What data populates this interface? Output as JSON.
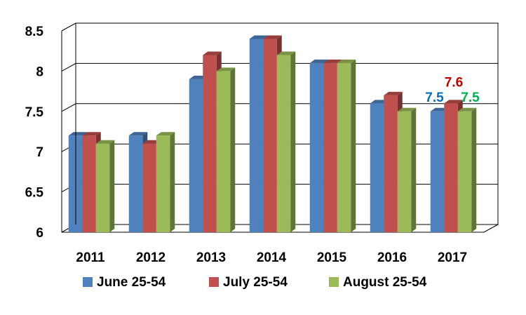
{
  "chart_data": {
    "type": "bar",
    "title": "",
    "xlabel": "",
    "ylabel": "",
    "categories": [
      "2011",
      "2012",
      "2013",
      "2014",
      "2015",
      "2016",
      "2017"
    ],
    "series": [
      {
        "name": "June 25-54",
        "color": "#4F81BD",
        "values": [
          7.2,
          7.2,
          7.9,
          8.4,
          8.1,
          7.6,
          7.5
        ]
      },
      {
        "name": "July 25-54",
        "color": "#C0504D",
        "values": [
          7.2,
          7.1,
          8.2,
          8.4,
          8.1,
          7.7,
          7.6
        ]
      },
      {
        "name": "August 25-54",
        "color": "#9BBB59",
        "values": [
          7.1,
          7.2,
          8.0,
          8.2,
          8.1,
          7.5,
          7.5
        ]
      }
    ],
    "ylim": [
      6,
      8.5
    ],
    "yticks": [
      "6",
      "6.5",
      "7",
      "7.5",
      "8",
      "8.5"
    ],
    "grid": true,
    "legend_position": "bottom",
    "data_labels": [
      {
        "series": 0,
        "category": 6,
        "text": "7.5",
        "color": "#0070C0"
      },
      {
        "series": 1,
        "category": 6,
        "text": "7.6",
        "color": "#C00000"
      },
      {
        "series": 2,
        "category": 6,
        "text": "7.5",
        "color": "#00B050"
      }
    ]
  }
}
